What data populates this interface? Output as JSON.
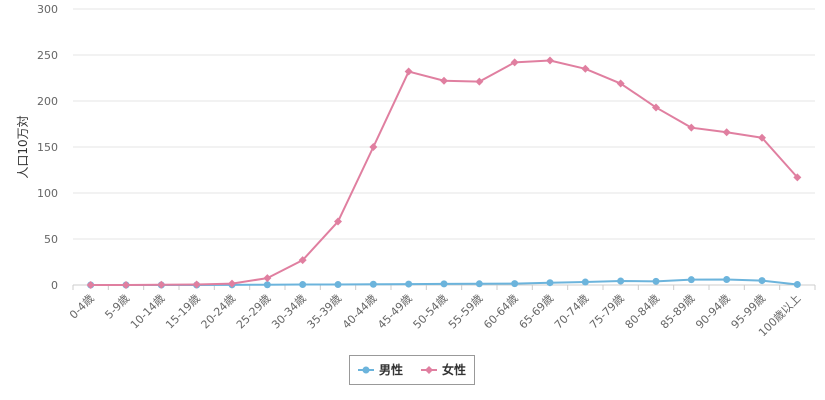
{
  "chart_data": {
    "type": "line",
    "title": "",
    "xlabel": "",
    "ylabel": "人口10万対",
    "ylim": [
      0,
      300
    ],
    "yticks": [
      0,
      50,
      100,
      150,
      200,
      250,
      300
    ],
    "grid": true,
    "legend_position": "bottom-center",
    "categories": [
      "0-4歳",
      "5-9歳",
      "10-14歳",
      "15-19歳",
      "20-24歳",
      "25-29歳",
      "30-34歳",
      "35-39歳",
      "40-44歳",
      "45-49歳",
      "50-54歳",
      "55-59歳",
      "60-64歳",
      "65-69歳",
      "70-74歳",
      "75-79歳",
      "80-84歳",
      "85-89歳",
      "90-94歳",
      "95-99歳",
      "100歳以上"
    ],
    "series": [
      {
        "name": "男性",
        "color": "#6cb4dc",
        "marker": "circle",
        "values": [
          0,
          0,
          0,
          0,
          0.2,
          0.3,
          0.5,
          0.5,
          0.8,
          1.0,
          1.2,
          1.3,
          1.5,
          2.5,
          3.2,
          4.3,
          4.0,
          5.8,
          6.0,
          4.8,
          0.6
        ]
      },
      {
        "name": "女性",
        "color": "#e07fa0",
        "marker": "diamond",
        "values": [
          0,
          0,
          0.3,
          0.5,
          1.5,
          7.5,
          27,
          69,
          150,
          232,
          222,
          221,
          242,
          244,
          235,
          219,
          193,
          171,
          166,
          160,
          117
        ]
      }
    ]
  }
}
